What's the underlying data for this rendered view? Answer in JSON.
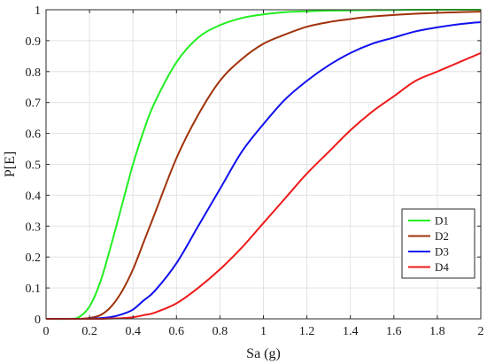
{
  "chart_data": {
    "type": "line",
    "xlabel": "Sa (g)",
    "ylabel": "P[E]",
    "xlim": [
      0,
      2
    ],
    "ylim": [
      0,
      1
    ],
    "xticks": [
      "0",
      "0.2",
      "0.4",
      "0.6",
      "0.8",
      "1",
      "1.2",
      "1.4",
      "1.6",
      "1.8",
      "2"
    ],
    "yticks": [
      "0",
      "0.1",
      "0.2",
      "0.3",
      "0.4",
      "0.5",
      "0.6",
      "0.7",
      "0.8",
      "0.9",
      "1"
    ],
    "grid": true,
    "legend_position": "bottom-right",
    "x": [
      0,
      0.1,
      0.15,
      0.2,
      0.25,
      0.3,
      0.35,
      0.4,
      0.45,
      0.5,
      0.6,
      0.7,
      0.8,
      0.9,
      1.0,
      1.1,
      1.2,
      1.3,
      1.4,
      1.5,
      1.6,
      1.7,
      1.8,
      1.9,
      2.0
    ],
    "series": [
      {
        "name": "D1",
        "color": "#22ee22",
        "values": [
          0,
          0.0,
          0.005,
          0.04,
          0.12,
          0.24,
          0.37,
          0.5,
          0.61,
          0.7,
          0.83,
          0.91,
          0.95,
          0.973,
          0.985,
          0.992,
          0.995,
          0.997,
          0.998,
          0.999,
          0.999,
          1.0,
          1.0,
          1.0,
          1.0
        ]
      },
      {
        "name": "D2",
        "color": "#a0320a",
        "values": [
          0,
          0.0,
          0.0,
          0.003,
          0.012,
          0.04,
          0.09,
          0.16,
          0.25,
          0.34,
          0.52,
          0.66,
          0.77,
          0.84,
          0.89,
          0.92,
          0.945,
          0.96,
          0.97,
          0.978,
          0.983,
          0.987,
          0.99,
          0.992,
          0.994
        ]
      },
      {
        "name": "D3",
        "color": "#1010ee",
        "values": [
          0,
          0.0,
          0.0,
          0.0,
          0.002,
          0.006,
          0.015,
          0.03,
          0.06,
          0.09,
          0.18,
          0.3,
          0.42,
          0.54,
          0.63,
          0.71,
          0.77,
          0.82,
          0.86,
          0.89,
          0.91,
          0.93,
          0.943,
          0.953,
          0.96
        ]
      },
      {
        "name": "D4",
        "color": "#ee1a1a",
        "values": [
          0,
          0.0,
          0.0,
          0.0,
          0.0,
          0.001,
          0.002,
          0.005,
          0.012,
          0.02,
          0.05,
          0.1,
          0.16,
          0.23,
          0.31,
          0.39,
          0.47,
          0.54,
          0.61,
          0.67,
          0.72,
          0.77,
          0.8,
          0.83,
          0.86
        ]
      }
    ]
  }
}
